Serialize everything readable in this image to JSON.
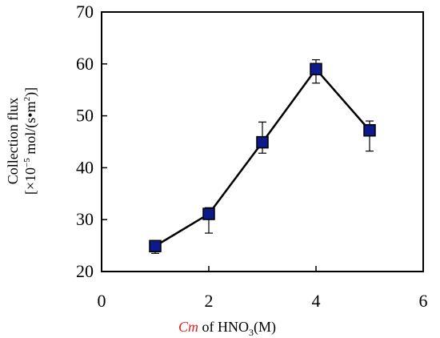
{
  "chart_data": {
    "type": "scatter",
    "title": "",
    "xlabel": {
      "prefix": "Cm",
      "rest": " of HNO",
      "subscript": "3",
      "suffix": "(M)"
    },
    "ylabel": {
      "line1": "Collection flux",
      "line2": {
        "pre": "[×10",
        "sup1": "−5",
        "mid": " mol/(s•m",
        "sup2": "2",
        "post": ")]"
      }
    },
    "xlim": [
      0,
      6
    ],
    "ylim": [
      20,
      70
    ],
    "xticks": [
      "0",
      "2",
      "4",
      "6"
    ],
    "yticks": [
      "20",
      "30",
      "40",
      "50",
      "60",
      "70"
    ],
    "grid": false,
    "series": [
      {
        "x": [
          1,
          2,
          3,
          4,
          5
        ],
        "y": [
          24.9,
          31.1,
          44.9,
          59.0,
          47.2
        ],
        "err_lower": [
          1.4,
          3.7,
          2.1,
          2.7,
          4.0
        ],
        "err_upper": [
          0.8,
          1.2,
          3.9,
          1.8,
          1.8
        ],
        "marker": "square",
        "line": "solid"
      }
    ],
    "colors": {
      "marker_fill": "#0d1a8a",
      "marker_edge": "#000000",
      "line": "#000000",
      "xlabel_accent": "#e0201f"
    }
  }
}
